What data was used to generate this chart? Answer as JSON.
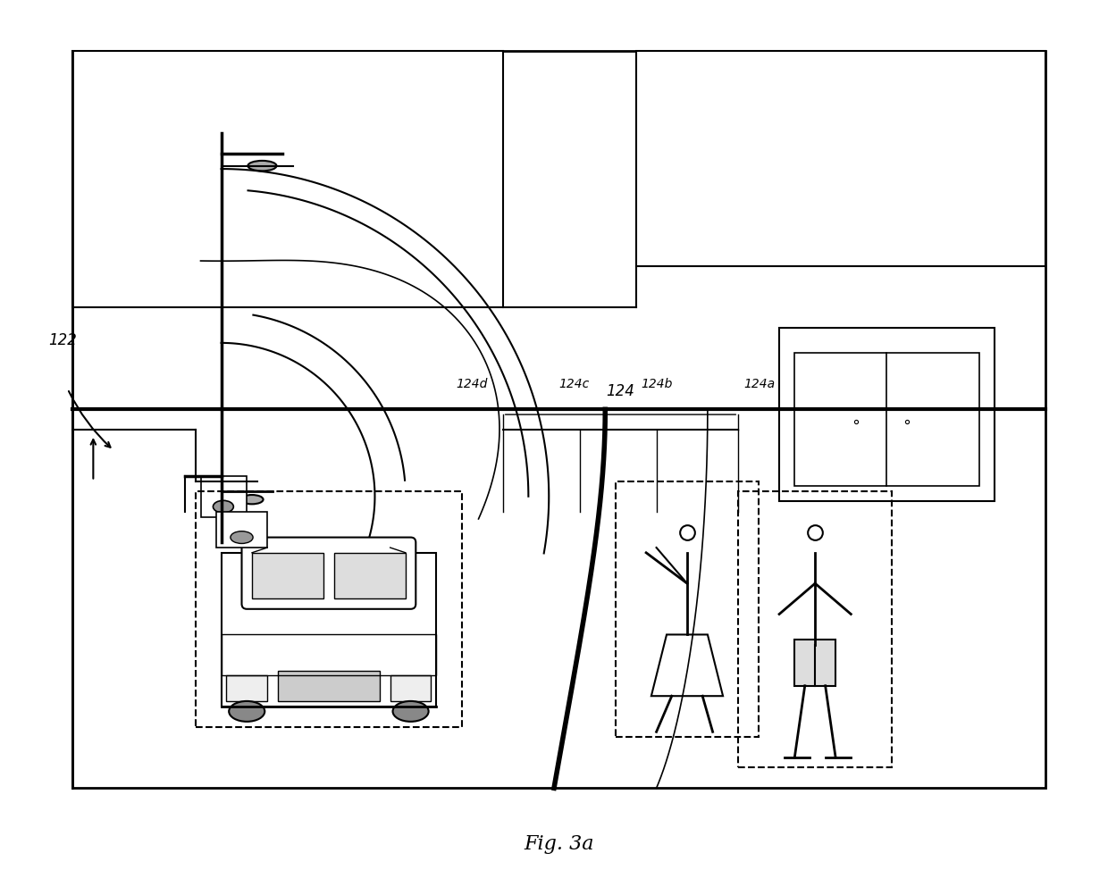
{
  "title": "Fig. 3a",
  "background_color": "#ffffff",
  "line_color": "#000000",
  "label_122": "122",
  "label_124": "124",
  "label_124a": "124a",
  "label_124b": "124b",
  "label_124c": "124c",
  "label_124d": "124d"
}
